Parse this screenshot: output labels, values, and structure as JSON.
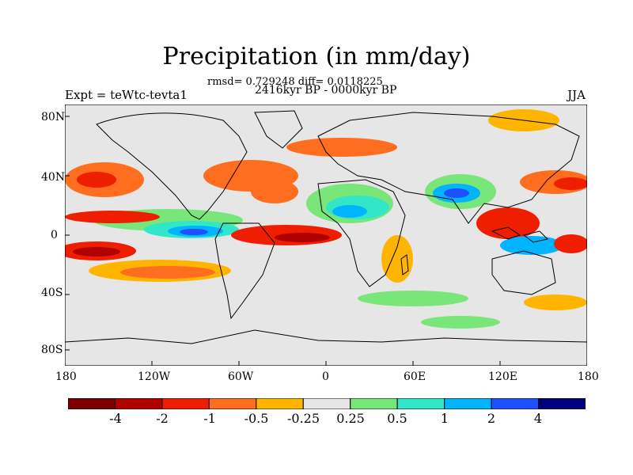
{
  "title": "Precipitation (in mm/day)",
  "stats": "rmsd= 0.729248 diff= 0.0118225",
  "period": "2416kyr BP - 0000kyr BP",
  "expt": "Expt = teWtc-tevta1",
  "season": "JJA",
  "map": {
    "lat_labels": [
      "80N",
      "40N",
      "0",
      "40S",
      "80S"
    ],
    "lon_labels": [
      "180",
      "120W",
      "60W",
      "0",
      "60E",
      "120E",
      "180"
    ]
  },
  "colorbar": {
    "colors": [
      "#7a0000",
      "#b00000",
      "#f01e00",
      "#ff6e1e",
      "#ffb400",
      "#e6e6e6",
      "#78e678",
      "#32e6c8",
      "#00b4ff",
      "#1e50ff",
      "#00007a"
    ],
    "labels": [
      "-4",
      "-2",
      "-1",
      "-0.5",
      "-0.25",
      "0.25",
      "0.5",
      "1",
      "2",
      "4"
    ]
  }
}
